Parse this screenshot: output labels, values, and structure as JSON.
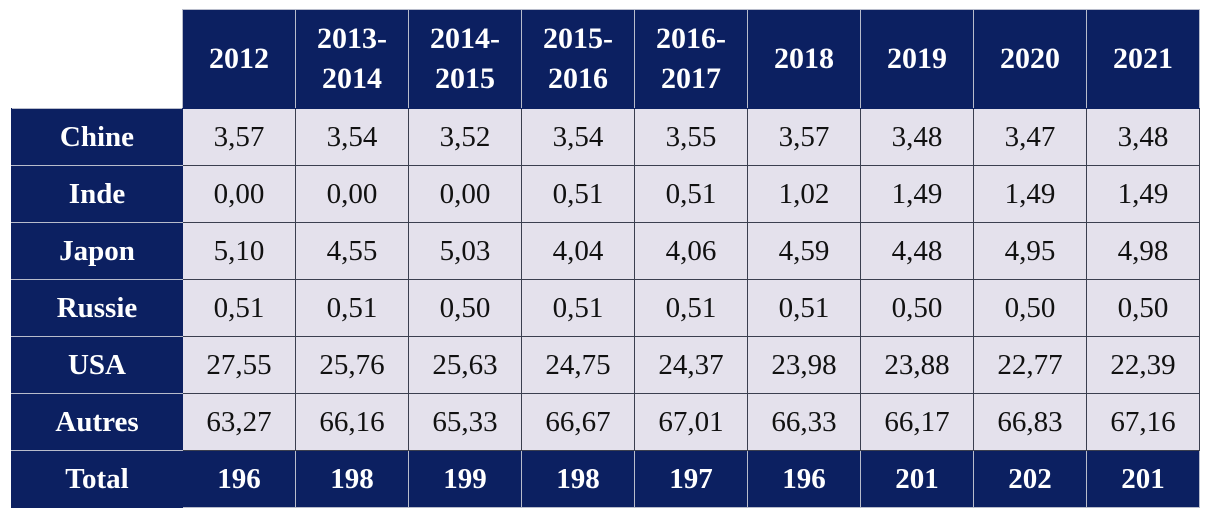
{
  "chart_data": {
    "type": "table",
    "columns": [
      "2012",
      "2013-\n2014",
      "2014-\n2015",
      "2015-\n2016",
      "2016-\n2017",
      "2018",
      "2019",
      "2020",
      "2021"
    ],
    "rows": [
      {
        "label": "Chine",
        "values": [
          "3,57",
          "3,54",
          "3,52",
          "3,54",
          "3,55",
          "3,57",
          "3,48",
          "3,47",
          "3,48"
        ]
      },
      {
        "label": "Inde",
        "values": [
          "0,00",
          "0,00",
          "0,00",
          "0,51",
          "0,51",
          "1,02",
          "1,49",
          "1,49",
          "1,49"
        ]
      },
      {
        "label": "Japon",
        "values": [
          "5,10",
          "4,55",
          "5,03",
          "4,04",
          "4,06",
          "4,59",
          "4,48",
          "4,95",
          "4,98"
        ]
      },
      {
        "label": "Russie",
        "values": [
          "0,51",
          "0,51",
          "0,50",
          "0,51",
          "0,51",
          "0,51",
          "0,50",
          "0,50",
          "0,50"
        ]
      },
      {
        "label": "USA",
        "values": [
          "27,55",
          "25,76",
          "25,63",
          "24,75",
          "24,37",
          "23,98",
          "23,88",
          "22,77",
          "22,39"
        ]
      },
      {
        "label": "Autres",
        "values": [
          "63,27",
          "66,16",
          "65,33",
          "66,67",
          "67,01",
          "66,33",
          "66,17",
          "66,83",
          "67,16"
        ]
      }
    ],
    "total": {
      "label": "Total",
      "values": [
        "196",
        "198",
        "199",
        "198",
        "197",
        "196",
        "201",
        "202",
        "201"
      ]
    },
    "colors": {
      "header_bg": "#0c2061",
      "cell_bg": "#e4e1ec",
      "header_text": "#ffffff"
    }
  }
}
